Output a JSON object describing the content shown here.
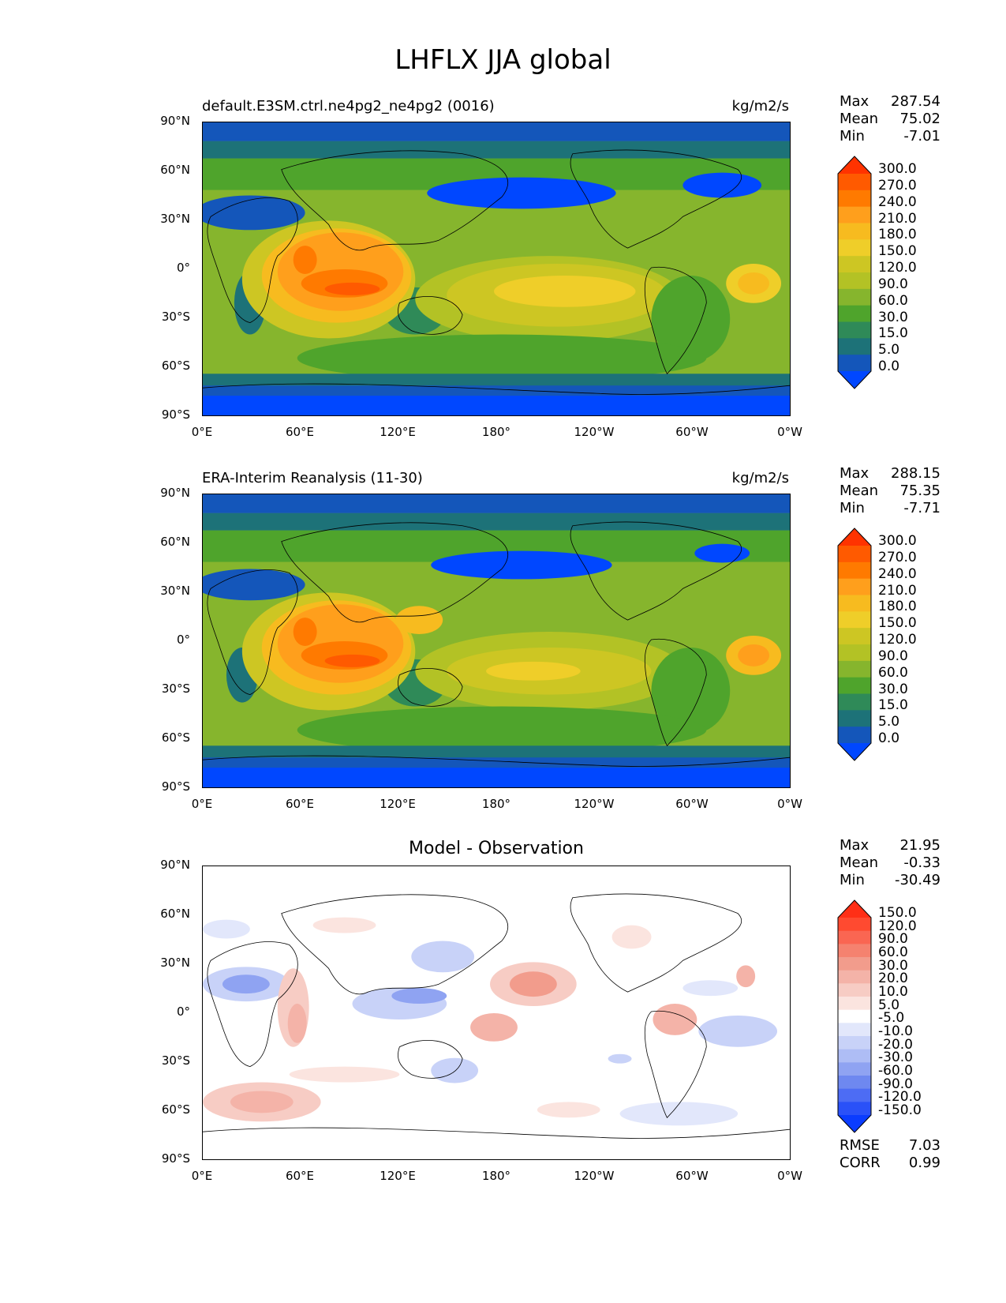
{
  "figure_title": "LHFLX JJA global",
  "x_ticks": [
    "0°E",
    "60°E",
    "120°E",
    "180°",
    "120°W",
    "60°W",
    "0°W"
  ],
  "y_ticks": [
    "90°N",
    "60°N",
    "30°N",
    "0°",
    "30°S",
    "60°S",
    "90°S"
  ],
  "panels": [
    {
      "title_left": "default.E3SM.ctrl.ne4pg2_ne4pg2 (0016)",
      "title_right": "kg/m2/s",
      "stats": {
        "max_label": "Max",
        "max": "287.54",
        "mean_label": "Mean",
        "mean": "75.02",
        "min_label": "Min",
        "min": "-7.01"
      },
      "colorbar": {
        "levels": [
          "300.0",
          "270.0",
          "240.0",
          "210.0",
          "180.0",
          "150.0",
          "120.0",
          "90.0",
          "60.0",
          "30.0",
          "15.0",
          "5.0",
          "0.0"
        ],
        "colors": [
          "#ff3300",
          "#ff5a00",
          "#ff7a00",
          "#ff9f1c",
          "#f7bb1f",
          "#efce29",
          "#cdc623",
          "#b3c225",
          "#86b52d",
          "#4fa42c",
          "#2f8a58",
          "#1d7278",
          "#1456ba",
          "#0047ff"
        ]
      }
    },
    {
      "title_left": "ERA-Interim Reanalysis (11-30)",
      "title_right": "kg/m2/s",
      "stats": {
        "max_label": "Max",
        "max": "288.15",
        "mean_label": "Mean",
        "mean": "75.35",
        "min_label": "Min",
        "min": "-7.71"
      },
      "colorbar": {
        "levels": [
          "300.0",
          "270.0",
          "240.0",
          "210.0",
          "180.0",
          "150.0",
          "120.0",
          "90.0",
          "60.0",
          "30.0",
          "15.0",
          "5.0",
          "0.0"
        ],
        "colors": [
          "#ff3300",
          "#ff5a00",
          "#ff7a00",
          "#ff9f1c",
          "#f7bb1f",
          "#efce29",
          "#cdc623",
          "#b3c225",
          "#86b52d",
          "#4fa42c",
          "#2f8a58",
          "#1d7278",
          "#1456ba",
          "#0047ff"
        ]
      }
    },
    {
      "title_center": "Model - Observation",
      "stats": {
        "max_label": "Max",
        "max": "21.95",
        "mean_label": "Mean",
        "mean": "-0.33",
        "min_label": "Min",
        "min": "-30.49"
      },
      "colorbar": {
        "levels": [
          "150.0",
          "120.0",
          "90.0",
          "60.0",
          "30.0",
          "20.0",
          "10.0",
          "5.0",
          "-5.0",
          "-10.0",
          "-20.0",
          "-30.0",
          "-60.0",
          "-90.0",
          "-120.0",
          "-150.0"
        ],
        "colors": [
          "#ff2f16",
          "#ff4a30",
          "#fa6652",
          "#f5826f",
          "#f29c8c",
          "#f4b3a8",
          "#f7ccc4",
          "#fbe4df",
          "#ffffff",
          "#e2e7fb",
          "#c8d2f8",
          "#aebdf5",
          "#8fa3f2",
          "#6e88f0",
          "#4d6cf4",
          "#2a51f8",
          "#0a3cff"
        ]
      },
      "error_stats": {
        "rmse_label": "RMSE",
        "rmse": "7.03",
        "corr_label": "CORR",
        "corr": "0.99"
      }
    }
  ]
}
